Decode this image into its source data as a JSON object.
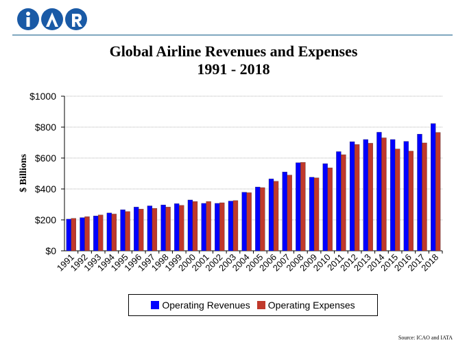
{
  "logo": {
    "text": "iAR",
    "color": "#1a5aa6"
  },
  "chart_title_line1": "Global Airline Revenues and Expenses",
  "chart_title_line2": "1991 - 2018",
  "source": "Source: ICAO and IATA",
  "chart_data": {
    "type": "bar",
    "title": "Global Airline Revenues and Expenses 1991 - 2018",
    "xlabel": "",
    "ylabel": "$ Billions",
    "ylim": [
      0,
      1000
    ],
    "yticks": [
      "$0",
      "$200",
      "$400",
      "$600",
      "$800",
      "$1000"
    ],
    "ytick_values": [
      0,
      200,
      400,
      600,
      800,
      1000
    ],
    "grid": true,
    "legend_position": "bottom",
    "categories": [
      "1991",
      "1992",
      "1993",
      "1994",
      "1995",
      "1996",
      "1997",
      "1998",
      "1999",
      "2000",
      "2001",
      "2002",
      "2003",
      "2004",
      "2005",
      "2006",
      "2007",
      "2008",
      "2009",
      "2010",
      "2011",
      "2012",
      "2013",
      "2014",
      "2015",
      "2016",
      "2017",
      "2018"
    ],
    "series": [
      {
        "name": "Operating Revenues",
        "color": "#0000ff",
        "values": [
          205,
          215,
          226,
          245,
          266,
          283,
          291,
          297,
          305,
          329,
          307,
          307,
          322,
          379,
          413,
          465,
          510,
          570,
          476,
          564,
          642,
          706,
          720,
          767,
          720,
          708,
          755,
          823
        ]
      },
      {
        "name": "Operating Expenses",
        "color": "#c0392b",
        "values": [
          210,
          221,
          232,
          238,
          254,
          270,
          275,
          283,
          294,
          319,
          319,
          311,
          325,
          376,
          409,
          450,
          490,
          572,
          472,
          537,
          622,
          688,
          696,
          731,
          659,
          645,
          698,
          766
        ]
      }
    ]
  }
}
